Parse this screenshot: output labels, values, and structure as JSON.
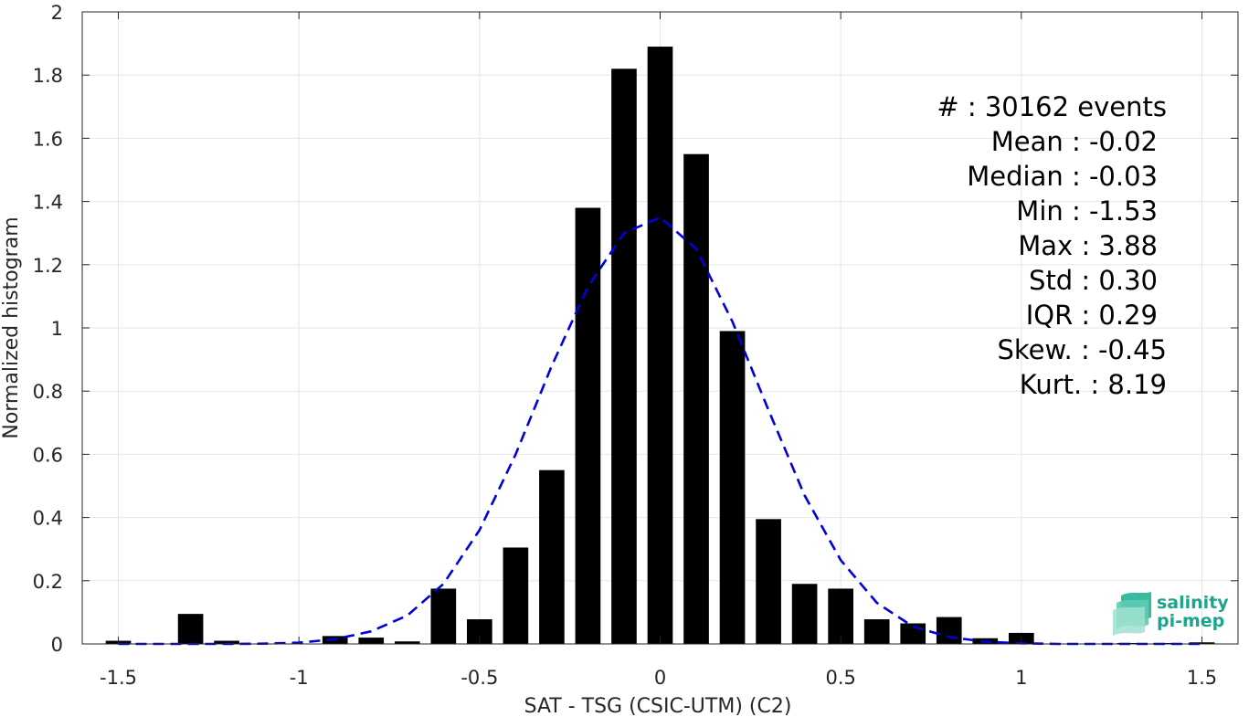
{
  "chart_data": {
    "type": "bar",
    "xlabel": "SAT - TSG (CSIC-UTM) (C2)",
    "ylabel": "Normalized histogram",
    "xlim": [
      -1.6,
      1.6
    ],
    "ylim": [
      0,
      2
    ],
    "grid": true,
    "x_ticks": [
      -1.5,
      -1,
      -0.5,
      0,
      0.5,
      1,
      1.5
    ],
    "x_tick_labels": [
      "-1.5",
      "-1",
      "-0.5",
      "0",
      "0.5",
      "1",
      "1.5"
    ],
    "y_ticks": [
      0,
      0.2,
      0.4,
      0.6,
      0.8,
      1,
      1.2,
      1.4,
      1.6,
      1.8,
      2
    ],
    "y_tick_labels": [
      "0",
      "0.2",
      "0.4",
      "0.6",
      "0.8",
      "1",
      "1.2",
      "1.4",
      "1.6",
      "1.8",
      "2"
    ],
    "bar_width": 0.07,
    "bar_color": "#000000",
    "bins": [
      {
        "x": -1.5,
        "value": 0.01
      },
      {
        "x": -1.3,
        "value": 0.095
      },
      {
        "x": -1.2,
        "value": 0.01
      },
      {
        "x": -0.9,
        "value": 0.025
      },
      {
        "x": -0.8,
        "value": 0.02
      },
      {
        "x": -0.7,
        "value": 0.008
      },
      {
        "x": -0.6,
        "value": 0.175
      },
      {
        "x": -0.5,
        "value": 0.078
      },
      {
        "x": -0.4,
        "value": 0.305
      },
      {
        "x": -0.3,
        "value": 0.55
      },
      {
        "x": -0.2,
        "value": 1.38
      },
      {
        "x": -0.1,
        "value": 1.82
      },
      {
        "x": 0.0,
        "value": 1.89
      },
      {
        "x": 0.1,
        "value": 1.55
      },
      {
        "x": 0.2,
        "value": 0.99
      },
      {
        "x": 0.3,
        "value": 0.395
      },
      {
        "x": 0.4,
        "value": 0.19
      },
      {
        "x": 0.5,
        "value": 0.175
      },
      {
        "x": 0.6,
        "value": 0.078
      },
      {
        "x": 0.7,
        "value": 0.065
      },
      {
        "x": 0.8,
        "value": 0.085
      },
      {
        "x": 0.9,
        "value": 0.018
      },
      {
        "x": 1.0,
        "value": 0.035
      },
      {
        "x": 1.3,
        "value": 0.003
      },
      {
        "x": 1.4,
        "value": 0.003
      },
      {
        "x": 1.5,
        "value": 0.005
      }
    ],
    "fit_curve": {
      "style": "dashed",
      "color": "#0000dd",
      "x": [
        -1.5,
        -1.4,
        -1.3,
        -1.2,
        -1.1,
        -1.0,
        -0.9,
        -0.8,
        -0.7,
        -0.6,
        -0.5,
        -0.4,
        -0.3,
        -0.2,
        -0.1,
        0.0,
        0.1,
        0.2,
        0.3,
        0.4,
        0.5,
        0.6,
        0.7,
        0.8,
        0.9,
        1.0,
        1.1,
        1.2,
        1.3,
        1.4,
        1.5
      ],
      "y": [
        0.0,
        0.0,
        0.0,
        0.0,
        0.001,
        0.004,
        0.015,
        0.04,
        0.09,
        0.19,
        0.36,
        0.6,
        0.88,
        1.13,
        1.3,
        1.35,
        1.25,
        1.02,
        0.74,
        0.47,
        0.265,
        0.13,
        0.055,
        0.022,
        0.007,
        0.002,
        0.0,
        0.0,
        0.0,
        0.0,
        0.0
      ]
    },
    "annotations": [
      "#  : 30162 events",
      "Mean : -0.02",
      "Median : -0.03",
      "Min : -1.53",
      "Max : 3.88",
      "Std : 0.30",
      "IQR : 0.29",
      "Skew. : -0.45",
      "Kurt. : 8.19"
    ]
  },
  "logo": {
    "line1": "salinity",
    "line2": "pi-mep",
    "color": "#1aa58c"
  }
}
